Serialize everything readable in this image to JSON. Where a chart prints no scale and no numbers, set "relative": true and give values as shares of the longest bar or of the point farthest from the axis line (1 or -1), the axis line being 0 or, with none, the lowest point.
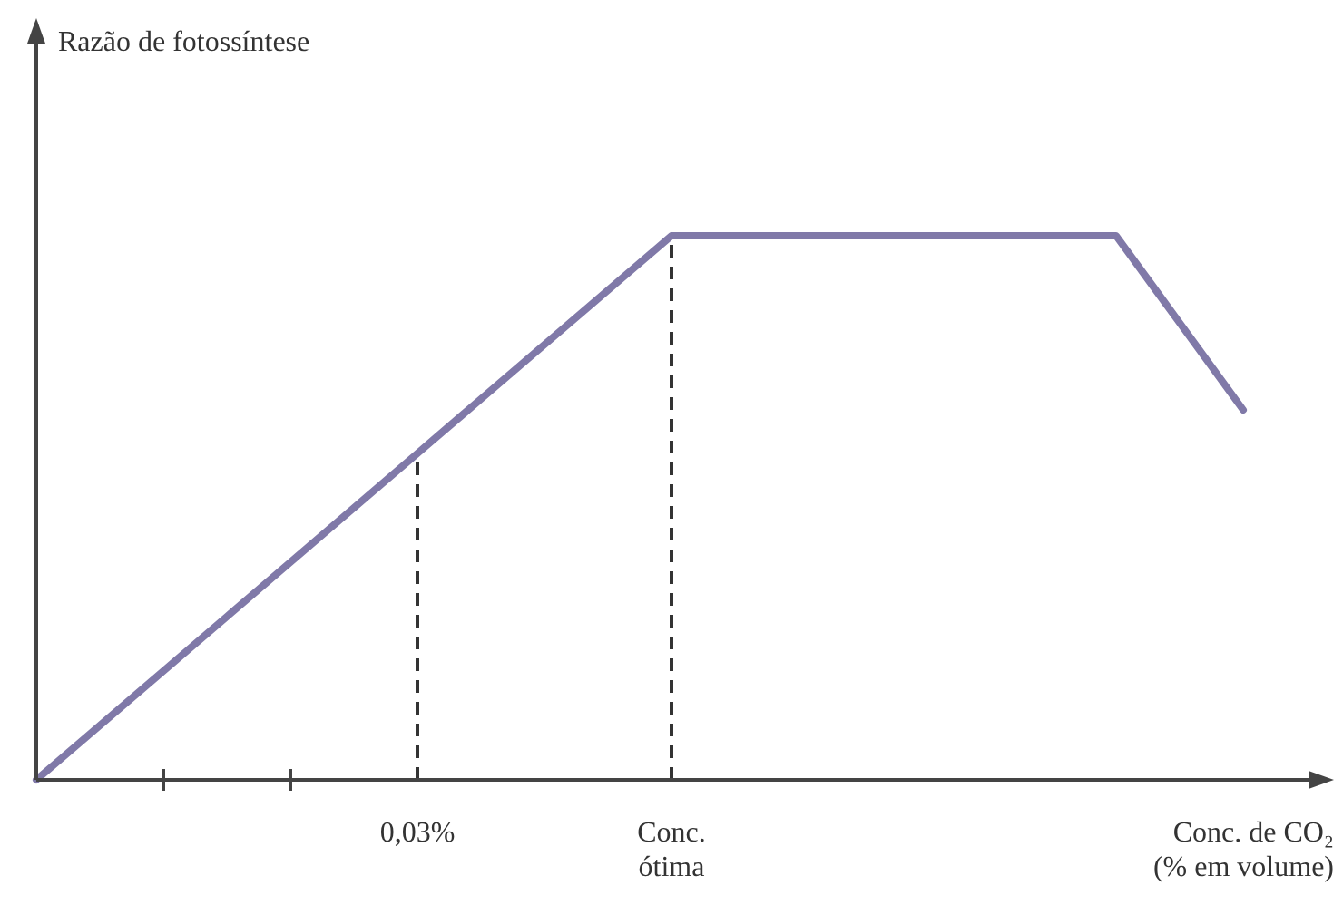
{
  "chart_data": {
    "type": "line",
    "relative": true,
    "annotations": [
      "Razão de fotossíntese"
    ],
    "xlabel": "Conc. de CO₂\n(% em volume)",
    "categories": [
      null,
      null,
      null,
      null,
      null,
      null,
      "0,03%",
      null,
      null,
      null,
      "Conc. ótima",
      null,
      null,
      null,
      null,
      null,
      null,
      null,
      null,
      null,
      null
    ],
    "series": [
      {
        "color": "#8079a8",
        "values": [
          0,
          0.1,
          0.2,
          0.3,
          0.4,
          0.5,
          0.6,
          0.7,
          0.8,
          0.9,
          1,
          1,
          1,
          1,
          1,
          1,
          1,
          1,
          0.84,
          0.68,
          null
        ]
      }
    ],
    "ref_lines": [
      {
        "axis": "x",
        "value": "0,03%",
        "line_style": "dashed",
        "color": "#333333"
      },
      {
        "axis": "x",
        "value": "Conc. ótima",
        "line_style": "dashed",
        "color": "#333333"
      }
    ],
    "marker": "none",
    "line_style": "solid",
    "grid": false
  }
}
